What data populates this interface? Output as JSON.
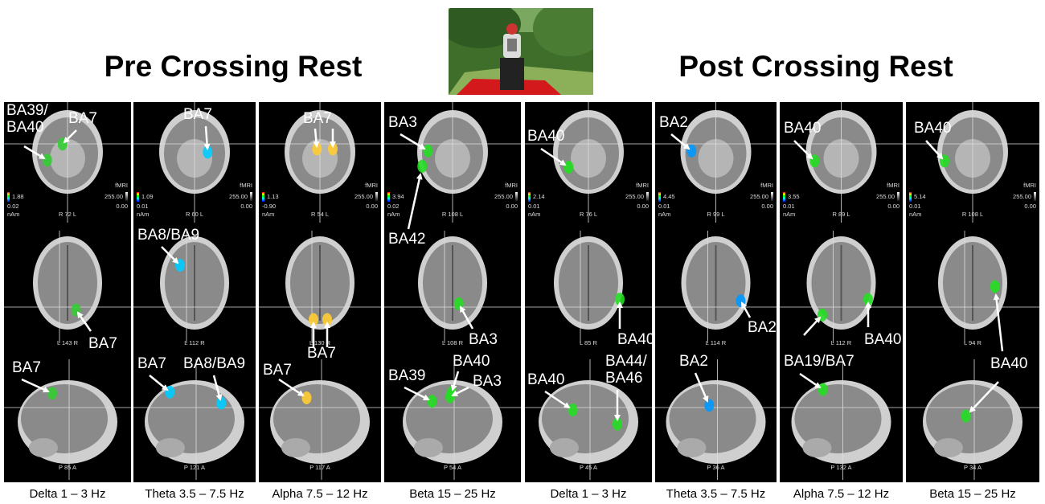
{
  "titles": {
    "pre": "Pre Crossing Rest",
    "post": "Post Crossing Rest"
  },
  "colorbar": {
    "unit": "nAm",
    "modality": "fMRI",
    "fmri_max": "255.00",
    "fmri_min": "0.00"
  },
  "panels": [
    {
      "caption": "Delta 1 –  3 Hz",
      "source_max": "1.88",
      "source_min": "0.02",
      "coronal_slice": "R 72 L",
      "axial_slice": "L 143 R",
      "sagittal_slice": "P 85 A",
      "labels": [
        "BA39/\nBA40",
        "BA7",
        "BA7",
        "BA7"
      ]
    },
    {
      "caption": "Theta 3.5 – 7.5 Hz",
      "source_max": "1.09",
      "source_min": "0.01",
      "coronal_slice": "R 60 L",
      "axial_slice": "L 112 R",
      "sagittal_slice": "P 121 A",
      "labels": [
        "BA7",
        "BA8/BA9",
        "BA7",
        "BA8/BA9"
      ]
    },
    {
      "caption": "Alpha 7.5 – 12 Hz",
      "source_max": "1.13",
      "source_min": "-0.90",
      "coronal_slice": "R 54 L",
      "axial_slice": "L 130 R",
      "sagittal_slice": "P 117 A",
      "labels": [
        "BA7",
        "BA7",
        "BA7"
      ]
    },
    {
      "caption": "Beta 15 – 25 Hz",
      "source_max": "3.94",
      "source_min": "0.02",
      "coronal_slice": "R 108 L",
      "axial_slice": "L 108 R",
      "sagittal_slice": "P 54 A",
      "labels": [
        "BA3",
        "BA42",
        "BA3",
        "BA39",
        "BA40",
        "BA3"
      ]
    },
    {
      "caption": "Delta 1 – 3 Hz",
      "source_max": "2.14",
      "source_min": "0.01",
      "coronal_slice": "R 76 L",
      "axial_slice": "L 85 R",
      "sagittal_slice": "P 45 A",
      "labels": [
        "BA40",
        "BA40",
        "BA44/\nBA46",
        "BA40"
      ]
    },
    {
      "caption": "Theta 3.5 – 7.5 Hz",
      "source_max": "4.45",
      "source_min": "0.01",
      "coronal_slice": "R 99 L",
      "axial_slice": "L 114 R",
      "sagittal_slice": "P 36 A",
      "labels": [
        "BA2",
        "BA2",
        "BA2"
      ]
    },
    {
      "caption": "Alpha 7.5 – 12 Hz",
      "source_max": "3.55",
      "source_min": "0.01",
      "coronal_slice": "R 89 L",
      "axial_slice": "L 112 R",
      "sagittal_slice": "P 132 A",
      "labels": [
        "BA40",
        "BA40",
        "BA19/BA7"
      ]
    },
    {
      "caption": "Beta 15 – 25 Hz",
      "source_max": "5.14",
      "source_min": "0.01",
      "coronal_slice": "R 108 L",
      "axial_slice": "L 94 R",
      "sagittal_slice": "P 34 A",
      "labels": [
        "BA40",
        "BA40"
      ]
    }
  ]
}
